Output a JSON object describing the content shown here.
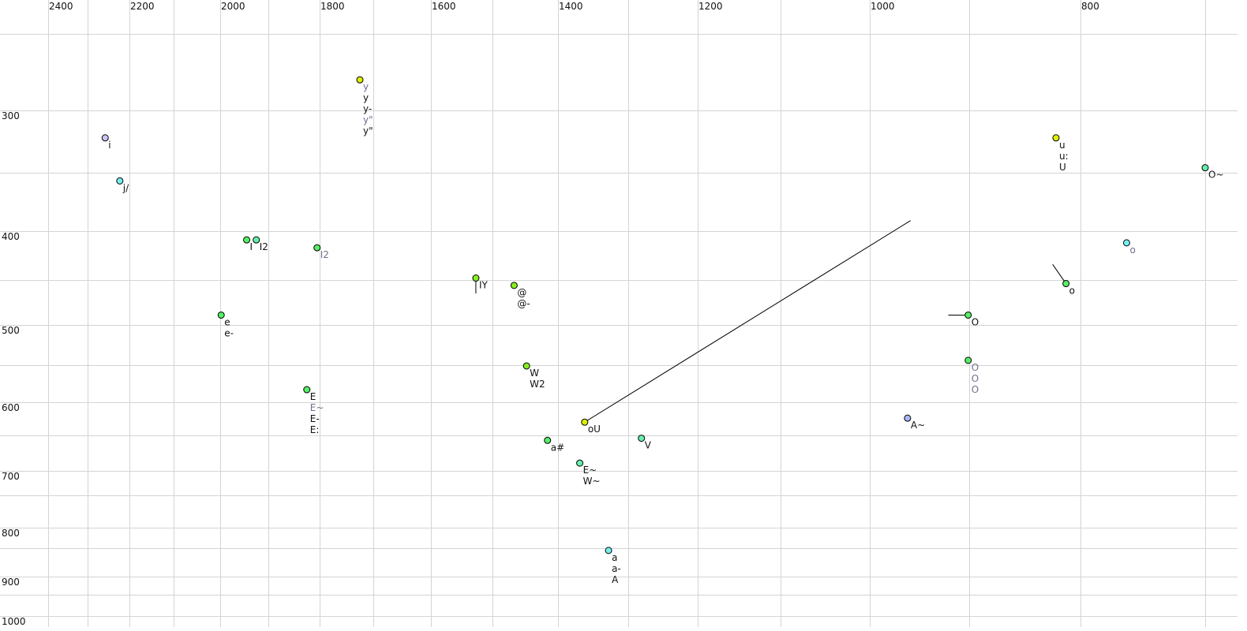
{
  "chart_data": {
    "type": "scatter",
    "title": "",
    "xlabel": "",
    "ylabel": "",
    "x_axis": {
      "position": "top",
      "reversed": true,
      "range": [
        2500,
        690
      ],
      "tick_labels": [
        2400,
        2200,
        2000,
        1800,
        1600,
        1400,
        1200,
        1000,
        800
      ],
      "gridlines": [
        2400,
        2300,
        2200,
        2100,
        2000,
        1900,
        1800,
        1700,
        1600,
        1500,
        1400,
        1300,
        1200,
        1100,
        1000,
        900,
        800,
        700
      ]
    },
    "y_axis": {
      "position": "left",
      "reversed": true,
      "range": [
        230,
        1010
      ],
      "tick_labels": [
        300,
        400,
        500,
        600,
        700,
        800,
        900,
        1000
      ],
      "gridlines": [
        250,
        300,
        350,
        400,
        450,
        500,
        550,
        600,
        650,
        700,
        750,
        800,
        850,
        900,
        950,
        1000
      ]
    },
    "grid": true,
    "colors": {
      "grid": "#d4d4d4",
      "label_black": "#111111",
      "label_gray": "#707090",
      "yellow": "#ddf000",
      "lime": "#88ee22",
      "green": "#55ee66",
      "teal": "#66eeaa",
      "cyan": "#77eeee",
      "lavender": "#ccc4f4",
      "periwinkle": "#a8b8f4"
    },
    "points": [
      {
        "x": 2258,
        "y": 322,
        "color": "lavender",
        "labels": [
          {
            "t": "i",
            "g": false
          }
        ]
      },
      {
        "x": 2223,
        "y": 357,
        "color": "cyan",
        "labels": [
          {
            "t": "j/",
            "g": false
          }
        ]
      },
      {
        "x": 1945,
        "y": 409,
        "color": "green",
        "labels": [
          {
            "t": "I",
            "g": false
          }
        ]
      },
      {
        "x": 1925,
        "y": 409,
        "color": "teal",
        "labels": [
          {
            "t": "I2",
            "g": false
          }
        ]
      },
      {
        "x": 1805,
        "y": 417,
        "color": "green",
        "labels": [
          {
            "t": "I2",
            "g": true
          }
        ]
      },
      {
        "x": 1725,
        "y": 280,
        "color": "yellow",
        "labels": [
          {
            "t": "y",
            "g": true
          },
          {
            "t": "y",
            "g": false
          },
          {
            "t": "y-",
            "g": false
          },
          {
            "t": "y\"",
            "g": true
          },
          {
            "t": "y\"",
            "g": false
          }
        ]
      },
      {
        "x": 1998,
        "y": 489,
        "color": "green",
        "labels": [
          {
            "t": "e",
            "g": false
          },
          {
            "t": "e-",
            "g": false
          }
        ]
      },
      {
        "x": 1825,
        "y": 583,
        "color": "green",
        "labels": [
          {
            "t": "E",
            "g": false
          },
          {
            "t": "E~",
            "g": true
          },
          {
            "t": "E-",
            "g": false
          },
          {
            "t": "E:",
            "g": false
          }
        ]
      },
      {
        "x": 1527,
        "y": 448,
        "color": "lime",
        "labels": [
          {
            "t": "IY",
            "g": false
          }
        ],
        "trail": {
          "x": 1527,
          "y": 465
        }
      },
      {
        "x": 1467,
        "y": 456,
        "color": "lime",
        "labels": [
          {
            "t": "@",
            "g": false
          },
          {
            "t": "@-",
            "g": false
          }
        ]
      },
      {
        "x": 1448,
        "y": 551,
        "color": "lime",
        "labels": [
          {
            "t": "W",
            "g": false
          },
          {
            "t": "W2",
            "g": false
          }
        ]
      },
      {
        "x": 1362,
        "y": 630,
        "color": "yellow",
        "labels": [
          {
            "t": "oU",
            "g": false
          }
        ],
        "trail": {
          "x": 959,
          "y": 391
        }
      },
      {
        "x": 1416,
        "y": 657,
        "color": "green",
        "labels": [
          {
            "t": "a#",
            "g": false
          }
        ]
      },
      {
        "x": 1281,
        "y": 654,
        "color": "teal",
        "labels": [
          {
            "t": "V",
            "g": false
          }
        ]
      },
      {
        "x": 1369,
        "y": 689,
        "color": "teal",
        "labels": [
          {
            "t": "E~",
            "g": false
          },
          {
            "t": "W~",
            "g": false
          }
        ]
      },
      {
        "x": 1328,
        "y": 854,
        "color": "cyan",
        "labels": [
          {
            "t": "a",
            "g": false
          },
          {
            "t": "a-",
            "g": false
          },
          {
            "t": "A",
            "g": false
          }
        ]
      },
      {
        "x": 962,
        "y": 624,
        "color": "periwinkle",
        "labels": [
          {
            "t": "A~",
            "g": false
          }
        ]
      },
      {
        "x": 901,
        "y": 489,
        "color": "green",
        "labels": [
          {
            "t": "O",
            "g": false
          }
        ],
        "trail": {
          "x": 921,
          "y": 489
        }
      },
      {
        "x": 901,
        "y": 544,
        "color": "green",
        "labels": [
          {
            "t": "O",
            "g": true
          },
          {
            "t": "O",
            "g": true
          },
          {
            "t": "O",
            "g": true
          }
        ]
      },
      {
        "x": 813,
        "y": 454,
        "color": "green",
        "labels": [
          {
            "t": "o",
            "g": false
          }
        ],
        "trail": {
          "x": 825,
          "y": 434
        }
      },
      {
        "x": 763,
        "y": 412,
        "color": "cyan",
        "labels": [
          {
            "t": "o",
            "g": true
          }
        ]
      },
      {
        "x": 822,
        "y": 322,
        "color": "yellow",
        "labels": [
          {
            "t": "u",
            "g": false
          },
          {
            "t": "u:",
            "g": false
          },
          {
            "t": "U",
            "g": false
          }
        ]
      },
      {
        "x": 700,
        "y": 346,
        "color": "teal",
        "labels": [
          {
            "t": "O~",
            "g": false
          }
        ]
      }
    ]
  }
}
